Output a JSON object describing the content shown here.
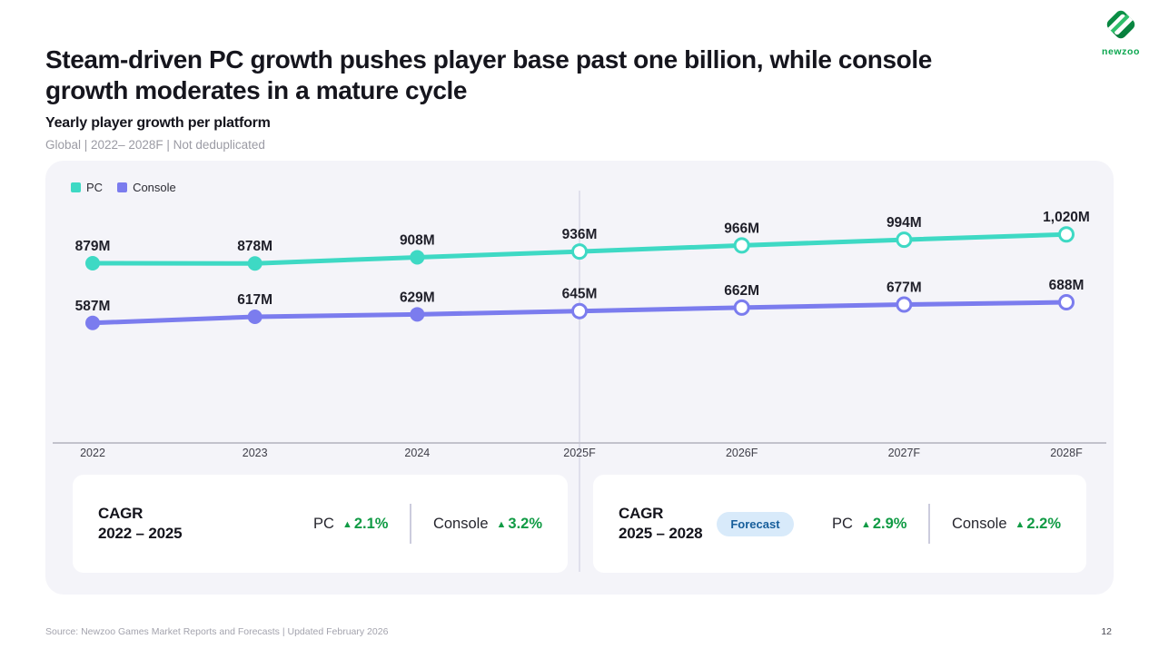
{
  "slide": {
    "title": "Steam-driven PC growth pushes player base past one billion, while console growth moderates in a mature cycle",
    "source": "Source: Newzoo Games Market Reports and Forecasts | Updated February 2026",
    "page_number": "12",
    "logo_word": "newzoo"
  },
  "chart_header": {
    "title": "Yearly player growth per platform",
    "meta": "Global | 2022– 2028F | Not deduplicated"
  },
  "glyphs": {
    "up_triangle": "▲"
  },
  "chart_data": {
    "type": "line",
    "title": "Yearly player growth per platform",
    "categories": [
      "2022",
      "2023",
      "2024",
      "2025F",
      "2026F",
      "2027F",
      "2028F"
    ],
    "unit": "M players",
    "series": [
      {
        "name": "PC",
        "color": "#3ed9c4",
        "values": [
          879,
          878,
          908,
          936,
          966,
          994,
          1020
        ],
        "labels": [
          "879M",
          "878M",
          "908M",
          "936M",
          "966M",
          "994M",
          "1,020M"
        ]
      },
      {
        "name": "Console",
        "color": "#7b7cee",
        "values": [
          587,
          617,
          629,
          645,
          662,
          677,
          688
        ],
        "labels": [
          "587M",
          "617M",
          "629M",
          "645M",
          "662M",
          "677M",
          "688M"
        ]
      }
    ],
    "forecast_start_index": 3,
    "ylim": [
      0,
      1380
    ],
    "grid": false,
    "legend_position": "top-left",
    "annotations": [
      "vertical divider line at 2025F separating actuals from forecast"
    ]
  },
  "cagr_cards": [
    {
      "title_line1": "CAGR",
      "title_line2": "2022 – 2025",
      "badge": "",
      "metrics": [
        {
          "label": "PC",
          "value": "2.1%"
        },
        {
          "label": "Console",
          "value": "3.2%"
        }
      ]
    },
    {
      "title_line1": "CAGR",
      "title_line2": "2025 – 2028",
      "badge": "Forecast",
      "metrics": [
        {
          "label": "PC",
          "value": "2.9%"
        },
        {
          "label": "Console",
          "value": "2.2%"
        }
      ]
    }
  ],
  "colors": {
    "pc_line": "#3ed9c4",
    "console_line": "#7b7cee",
    "cagr_green": "#119b45",
    "badge_bg": "#d8eafa",
    "badge_text": "#175e9b",
    "panel_bg": "#f4f4f9",
    "axis_line": "#c2c2cc",
    "forecast_divider": "#d9d9e8"
  }
}
